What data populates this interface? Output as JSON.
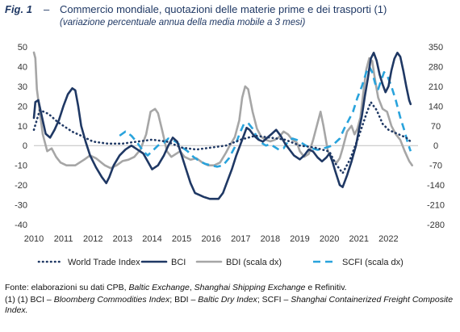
{
  "figure": {
    "label": "Fig. 1",
    "dash": "–",
    "title": "Commercio mondiale, quotazioni delle materie prime e dei trasporti (1)",
    "subtitle": "(variazione percentuale annua della media mobile a 3 mesi)"
  },
  "notes": {
    "source_prefix": "Fonte: elaborazioni su dati CPB, ",
    "source_italic_1": "Baltic Exchange",
    "source_sep_1": ", ",
    "source_italic_2": "Shanghai Shipping Exchange",
    "source_suffix": " e Refinitiv.",
    "footnote_prefix": "(1) (1) BCI – ",
    "footnote_italic_1": "Bloomberg Commodities Index",
    "footnote_mid_1": "; BDI – ",
    "footnote_italic_2": "Baltic Dry Index",
    "footnote_mid_2": "; SCFI – ",
    "footnote_italic_3": "Shanghai Containerized Freight Composite Index."
  },
  "chart_data": {
    "type": "line",
    "left_axis": {
      "min": -40,
      "max": 50,
      "ticks": [
        50,
        40,
        30,
        20,
        10,
        0,
        -10,
        -20,
        -30,
        -40
      ]
    },
    "right_axis": {
      "min": -280,
      "max": 350,
      "ticks": [
        350,
        280,
        210,
        140,
        70,
        0,
        -70,
        -140,
        -210,
        -280
      ]
    },
    "x_axis": {
      "min": 2010,
      "max": 2023,
      "ticks": [
        "2010",
        "2011",
        "2012",
        "2013",
        "2014",
        "2015",
        "2016",
        "2017",
        "2018",
        "2019",
        "2020",
        "2021",
        "2022"
      ]
    },
    "grid": false,
    "legend_position": "bottom",
    "series": [
      {
        "name": "World Trade Index",
        "axis": "left",
        "color": "#1f3864",
        "style": "dotted",
        "points": [
          [
            2010.0,
            8
          ],
          [
            2010.2,
            18
          ],
          [
            2010.5,
            16
          ],
          [
            2010.8,
            12
          ],
          [
            2011.0,
            10
          ],
          [
            2011.3,
            7
          ],
          [
            2011.6,
            5
          ],
          [
            2012.0,
            2
          ],
          [
            2012.5,
            1
          ],
          [
            2013.0,
            1
          ],
          [
            2013.5,
            2
          ],
          [
            2014.0,
            3
          ],
          [
            2014.5,
            2
          ],
          [
            2015.0,
            -1
          ],
          [
            2015.5,
            -2
          ],
          [
            2016.0,
            -1
          ],
          [
            2016.5,
            0
          ],
          [
            2017.0,
            3
          ],
          [
            2017.5,
            5
          ],
          [
            2018.0,
            4
          ],
          [
            2018.5,
            3
          ],
          [
            2019.0,
            0
          ],
          [
            2019.5,
            -1
          ],
          [
            2020.0,
            -3
          ],
          [
            2020.2,
            -9
          ],
          [
            2020.45,
            -14
          ],
          [
            2020.7,
            -7
          ],
          [
            2021.0,
            5
          ],
          [
            2021.25,
            16
          ],
          [
            2021.4,
            22
          ],
          [
            2021.6,
            18
          ],
          [
            2021.8,
            11
          ],
          [
            2022.0,
            8
          ],
          [
            2022.3,
            6
          ],
          [
            2022.6,
            4
          ],
          [
            2022.75,
            2
          ]
        ]
      },
      {
        "name": "BCI",
        "axis": "left",
        "color": "#1f3864",
        "style": "solid",
        "points": [
          [
            2010.0,
            14
          ],
          [
            2010.05,
            22
          ],
          [
            2010.15,
            23
          ],
          [
            2010.25,
            16
          ],
          [
            2010.4,
            6
          ],
          [
            2010.55,
            4
          ],
          [
            2010.7,
            8
          ],
          [
            2010.85,
            13
          ],
          [
            2011.0,
            20
          ],
          [
            2011.15,
            26
          ],
          [
            2011.3,
            29
          ],
          [
            2011.4,
            28
          ],
          [
            2011.5,
            20
          ],
          [
            2011.6,
            10
          ],
          [
            2011.75,
            2
          ],
          [
            2011.9,
            -5
          ],
          [
            2012.1,
            -11
          ],
          [
            2012.3,
            -16
          ],
          [
            2012.45,
            -19
          ],
          [
            2012.55,
            -16
          ],
          [
            2012.7,
            -10
          ],
          [
            2012.9,
            -5
          ],
          [
            2013.1,
            -2
          ],
          [
            2013.3,
            0
          ],
          [
            2013.5,
            -2
          ],
          [
            2013.7,
            -4
          ],
          [
            2013.85,
            -8
          ],
          [
            2014.0,
            -12
          ],
          [
            2014.2,
            -10
          ],
          [
            2014.4,
            -5
          ],
          [
            2014.55,
            0
          ],
          [
            2014.7,
            4
          ],
          [
            2014.85,
            2
          ],
          [
            2015.0,
            -5
          ],
          [
            2015.15,
            -12
          ],
          [
            2015.3,
            -19
          ],
          [
            2015.45,
            -24
          ],
          [
            2015.6,
            -25
          ],
          [
            2015.75,
            -26
          ],
          [
            2015.95,
            -27
          ],
          [
            2016.1,
            -27
          ],
          [
            2016.25,
            -27
          ],
          [
            2016.4,
            -24
          ],
          [
            2016.55,
            -18
          ],
          [
            2016.7,
            -12
          ],
          [
            2016.85,
            -5
          ],
          [
            2017.0,
            1
          ],
          [
            2017.1,
            5
          ],
          [
            2017.2,
            9
          ],
          [
            2017.3,
            8
          ],
          [
            2017.45,
            5
          ],
          [
            2017.6,
            3
          ],
          [
            2017.75,
            2
          ],
          [
            2017.9,
            4
          ],
          [
            2018.05,
            6
          ],
          [
            2018.2,
            8
          ],
          [
            2018.35,
            5
          ],
          [
            2018.5,
            1
          ],
          [
            2018.65,
            -2
          ],
          [
            2018.8,
            -5
          ],
          [
            2019.0,
            -7
          ],
          [
            2019.15,
            -5
          ],
          [
            2019.3,
            -2
          ],
          [
            2019.45,
            -3
          ],
          [
            2019.6,
            -6
          ],
          [
            2019.75,
            -8
          ],
          [
            2019.9,
            -6
          ],
          [
            2020.0,
            -4
          ],
          [
            2020.1,
            -8
          ],
          [
            2020.2,
            -13
          ],
          [
            2020.35,
            -20
          ],
          [
            2020.45,
            -21
          ],
          [
            2020.6,
            -15
          ],
          [
            2020.75,
            -8
          ],
          [
            2020.9,
            0
          ],
          [
            2021.0,
            8
          ],
          [
            2021.1,
            15
          ],
          [
            2021.2,
            25
          ],
          [
            2021.3,
            34
          ],
          [
            2021.4,
            44
          ],
          [
            2021.5,
            47
          ],
          [
            2021.6,
            43
          ],
          [
            2021.7,
            36
          ],
          [
            2021.8,
            31
          ],
          [
            2021.9,
            27
          ],
          [
            2022.0,
            30
          ],
          [
            2022.1,
            38
          ],
          [
            2022.2,
            44
          ],
          [
            2022.3,
            47
          ],
          [
            2022.4,
            45
          ],
          [
            2022.5,
            38
          ],
          [
            2022.6,
            30
          ],
          [
            2022.7,
            23
          ],
          [
            2022.75,
            21
          ]
        ]
      },
      {
        "name": "BDI (scala dx)",
        "axis": "right",
        "color": "#a6a6a6",
        "style": "solid",
        "points": [
          [
            2010.0,
            330
          ],
          [
            2010.05,
            310
          ],
          [
            2010.1,
            200
          ],
          [
            2010.2,
            120
          ],
          [
            2010.3,
            40
          ],
          [
            2010.45,
            -20
          ],
          [
            2010.6,
            -10
          ],
          [
            2010.75,
            -40
          ],
          [
            2010.9,
            -60
          ],
          [
            2011.1,
            -70
          ],
          [
            2011.4,
            -70
          ],
          [
            2011.7,
            -50
          ],
          [
            2011.9,
            -35
          ],
          [
            2012.1,
            -45
          ],
          [
            2012.4,
            -70
          ],
          [
            2012.6,
            -80
          ],
          [
            2012.8,
            -70
          ],
          [
            2013.0,
            -55
          ],
          [
            2013.2,
            -50
          ],
          [
            2013.4,
            -40
          ],
          [
            2013.6,
            -15
          ],
          [
            2013.8,
            40
          ],
          [
            2013.95,
            120
          ],
          [
            2014.1,
            130
          ],
          [
            2014.2,
            115
          ],
          [
            2014.35,
            50
          ],
          [
            2014.5,
            -20
          ],
          [
            2014.65,
            -40
          ],
          [
            2014.8,
            -30
          ],
          [
            2014.95,
            -20
          ],
          [
            2015.1,
            -40
          ],
          [
            2015.3,
            -50
          ],
          [
            2015.5,
            -45
          ],
          [
            2015.7,
            -60
          ],
          [
            2015.9,
            -70
          ],
          [
            2016.1,
            -70
          ],
          [
            2016.3,
            -60
          ],
          [
            2016.5,
            -25
          ],
          [
            2016.6,
            -5
          ],
          [
            2016.8,
            30
          ],
          [
            2016.95,
            90
          ],
          [
            2017.05,
            170
          ],
          [
            2017.15,
            210
          ],
          [
            2017.25,
            200
          ],
          [
            2017.4,
            120
          ],
          [
            2017.55,
            60
          ],
          [
            2017.7,
            30
          ],
          [
            2017.85,
            20
          ],
          [
            2018.0,
            15
          ],
          [
            2018.15,
            20
          ],
          [
            2018.3,
            30
          ],
          [
            2018.45,
            50
          ],
          [
            2018.6,
            40
          ],
          [
            2018.75,
            20
          ],
          [
            2018.9,
            10
          ],
          [
            2019.0,
            -20
          ],
          [
            2019.15,
            -40
          ],
          [
            2019.3,
            -30
          ],
          [
            2019.45,
            20
          ],
          [
            2019.6,
            80
          ],
          [
            2019.7,
            120
          ],
          [
            2019.8,
            70
          ],
          [
            2019.95,
            -20
          ],
          [
            2020.1,
            -50
          ],
          [
            2020.25,
            -60
          ],
          [
            2020.35,
            -45
          ],
          [
            2020.45,
            -10
          ],
          [
            2020.6,
            50
          ],
          [
            2020.75,
            70
          ],
          [
            2020.85,
            40
          ],
          [
            2020.95,
            60
          ],
          [
            2021.05,
            100
          ],
          [
            2021.15,
            190
          ],
          [
            2021.25,
            270
          ],
          [
            2021.35,
            310
          ],
          [
            2021.45,
            300
          ],
          [
            2021.55,
            230
          ],
          [
            2021.65,
            170
          ],
          [
            2021.8,
            130
          ],
          [
            2021.95,
            120
          ],
          [
            2022.1,
            70
          ],
          [
            2022.25,
            40
          ],
          [
            2022.4,
            20
          ],
          [
            2022.55,
            -20
          ],
          [
            2022.7,
            -55
          ],
          [
            2022.8,
            -70
          ]
        ]
      },
      {
        "name": "SCFI (scala dx)",
        "axis": "right",
        "color": "#29a3dc",
        "style": "dashed",
        "points": [
          [
            2012.9,
            35
          ],
          [
            2013.1,
            50
          ],
          [
            2013.3,
            35
          ],
          [
            2013.5,
            10
          ],
          [
            2013.7,
            -20
          ],
          [
            2013.85,
            -35
          ],
          [
            2014.0,
            -20
          ],
          [
            2014.2,
            0
          ],
          [
            2014.4,
            10
          ],
          [
            2014.55,
            25
          ],
          [
            2014.7,
            20
          ],
          [
            2014.85,
            10
          ],
          [
            2015.0,
            -5
          ],
          [
            2015.2,
            -20
          ],
          [
            2015.4,
            -40
          ],
          [
            2015.6,
            -55
          ],
          [
            2015.8,
            -65
          ],
          [
            2016.0,
            -70
          ],
          [
            2016.2,
            -75
          ],
          [
            2016.4,
            -70
          ],
          [
            2016.6,
            -45
          ],
          [
            2016.8,
            -5
          ],
          [
            2016.95,
            40
          ],
          [
            2017.1,
            75
          ],
          [
            2017.25,
            80
          ],
          [
            2017.4,
            60
          ],
          [
            2017.55,
            30
          ],
          [
            2017.7,
            10
          ],
          [
            2017.85,
            0
          ],
          [
            2018.0,
            5
          ],
          [
            2018.15,
            -5
          ],
          [
            2018.3,
            -15
          ],
          [
            2018.45,
            -10
          ],
          [
            2018.6,
            15
          ],
          [
            2018.75,
            25
          ],
          [
            2018.9,
            20
          ],
          [
            2019.05,
            10
          ],
          [
            2019.2,
            0
          ],
          [
            2019.4,
            -10
          ],
          [
            2019.6,
            -15
          ],
          [
            2019.8,
            -10
          ],
          [
            2019.95,
            -5
          ],
          [
            2020.1,
            0
          ],
          [
            2020.2,
            10
          ],
          [
            2020.35,
            25
          ],
          [
            2020.5,
            60
          ],
          [
            2020.65,
            90
          ],
          [
            2020.8,
            120
          ],
          [
            2020.95,
            170
          ],
          [
            2021.1,
            210
          ],
          [
            2021.25,
            260
          ],
          [
            2021.35,
            280
          ],
          [
            2021.45,
            260
          ],
          [
            2021.55,
            220
          ],
          [
            2021.65,
            200
          ],
          [
            2021.75,
            230
          ],
          [
            2021.85,
            260
          ],
          [
            2021.95,
            250
          ],
          [
            2022.1,
            210
          ],
          [
            2022.25,
            160
          ],
          [
            2022.4,
            100
          ],
          [
            2022.55,
            50
          ],
          [
            2022.65,
            10
          ],
          [
            2022.75,
            -20
          ]
        ]
      }
    ]
  }
}
